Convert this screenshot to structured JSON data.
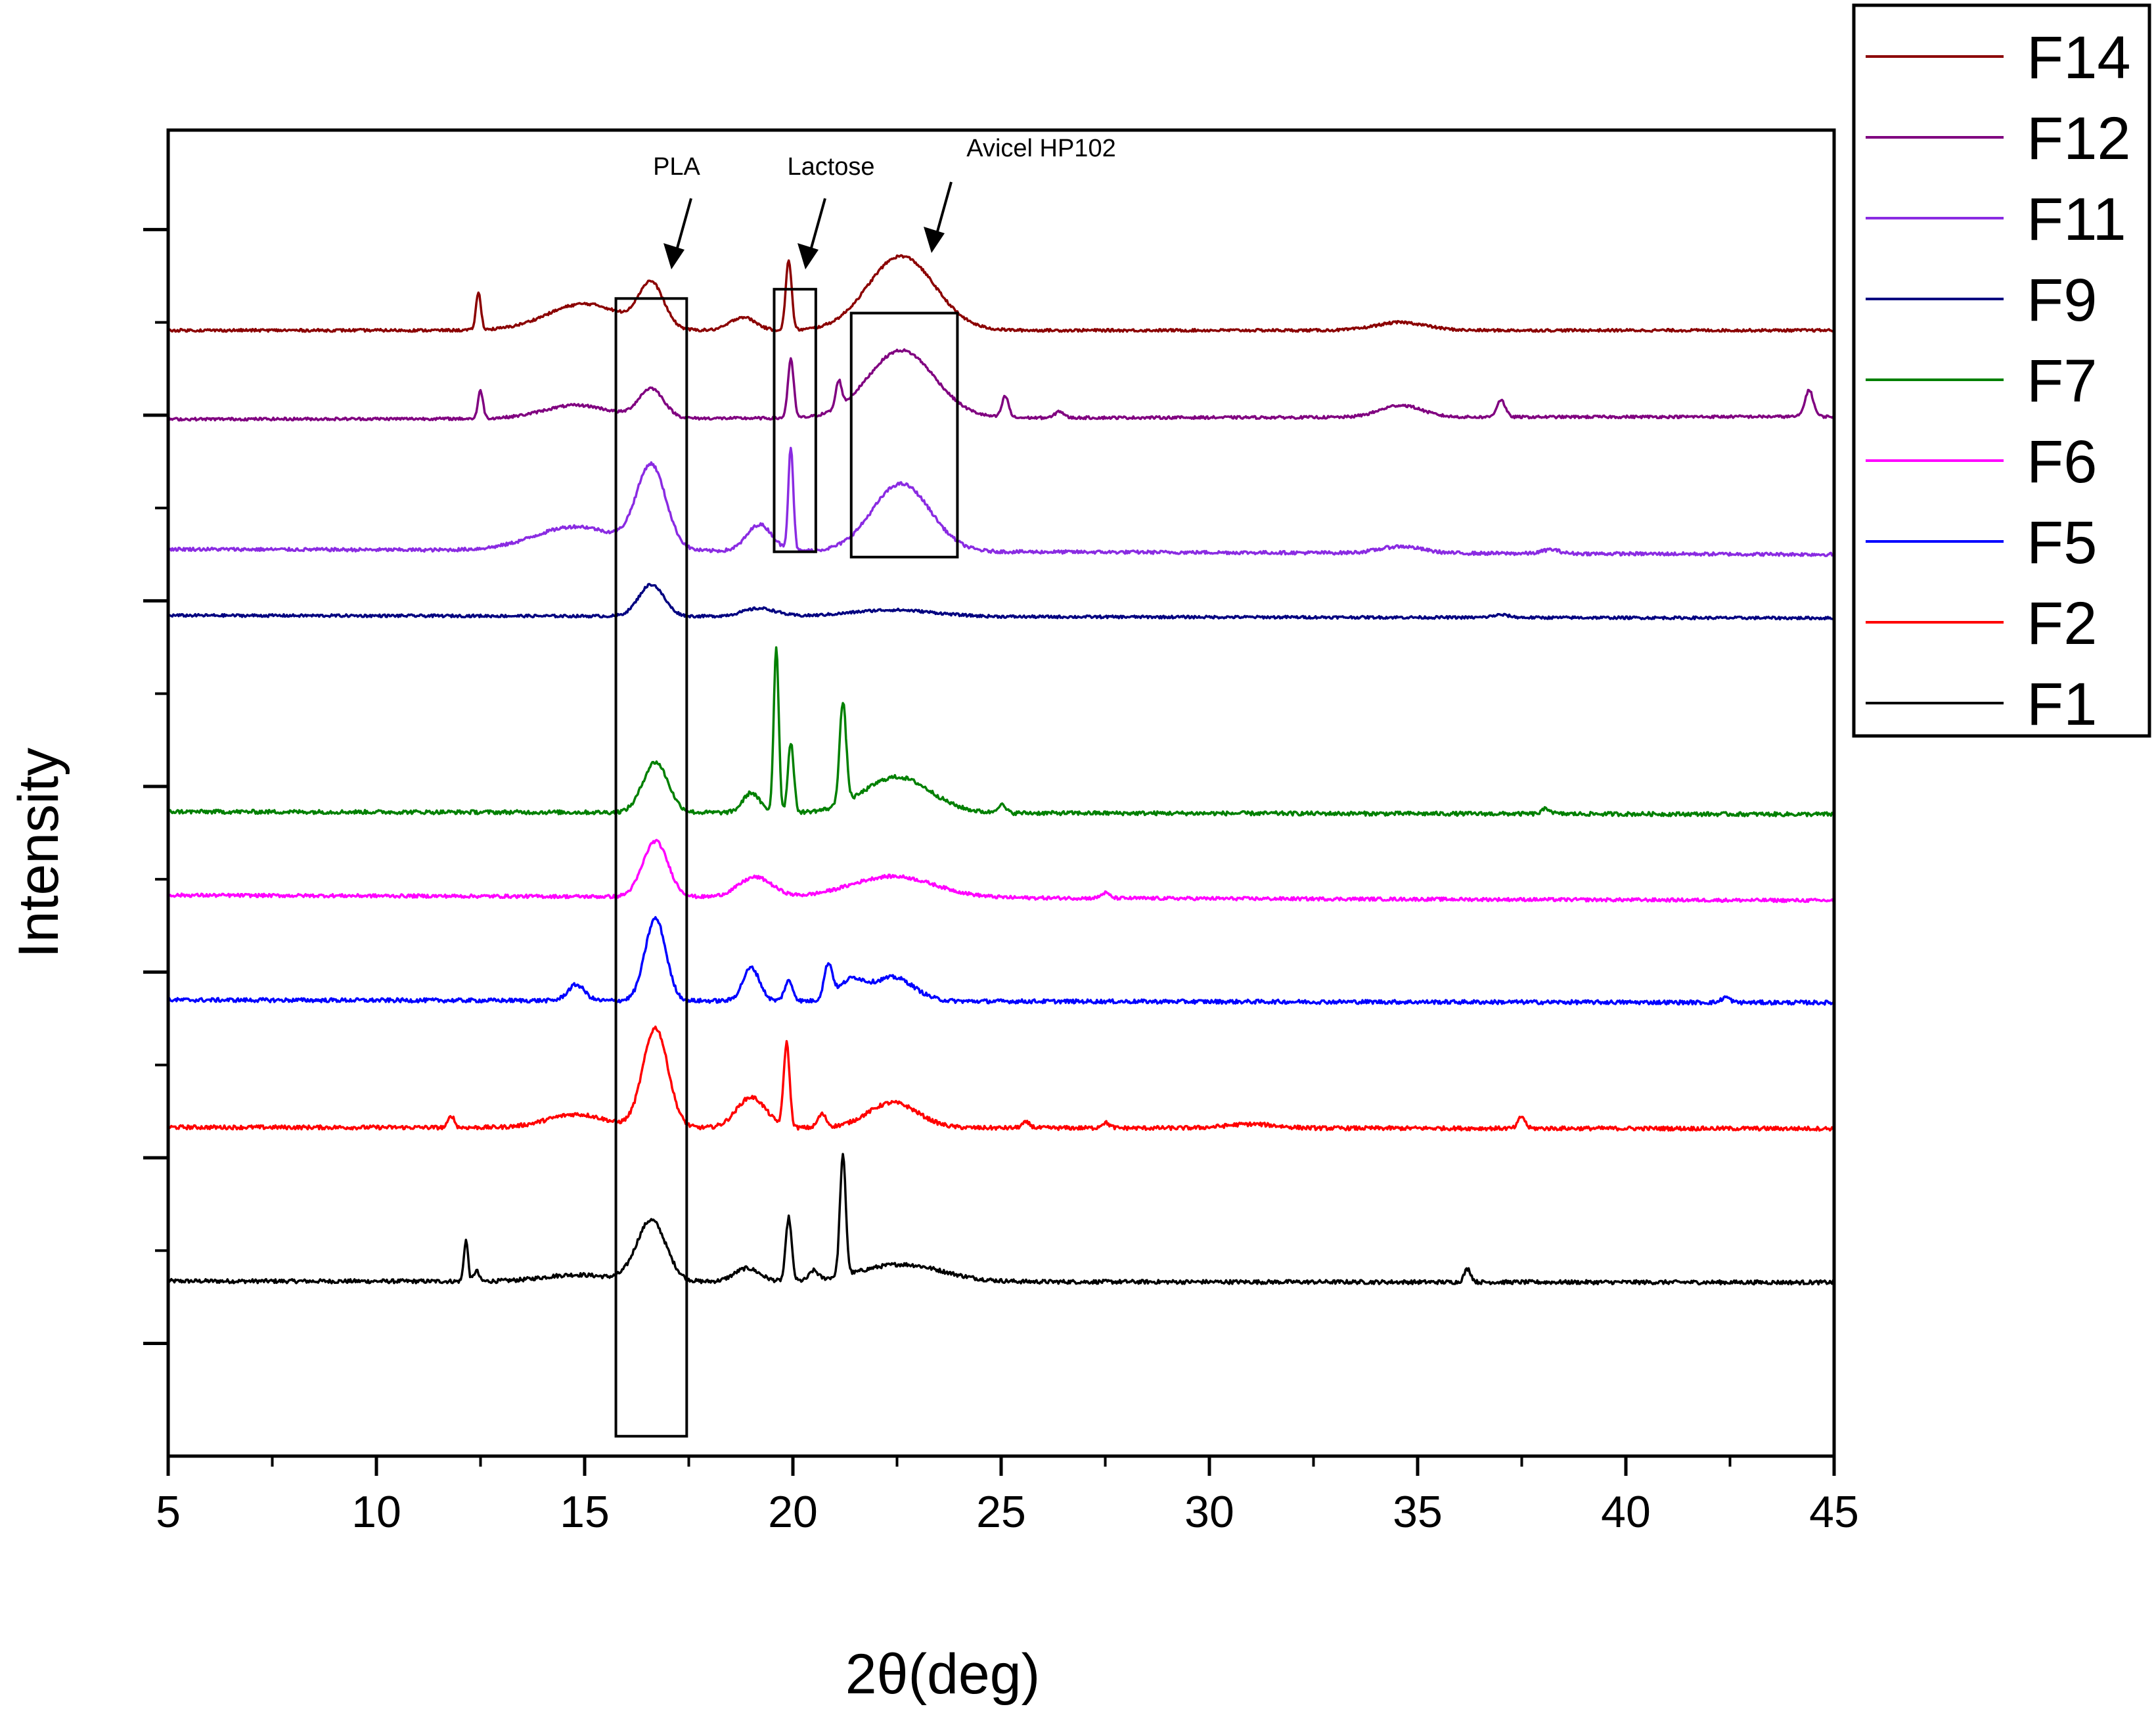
{
  "chart_data": {
    "type": "line",
    "title": "",
    "xlabel": "2θ(deg)",
    "ylabel": "Intensity",
    "xlim": [
      5,
      45
    ],
    "ylim": [
      0,
      100
    ],
    "x_ticks": [
      5,
      10,
      15,
      20,
      25,
      30,
      35,
      40,
      45
    ],
    "x_tick_labels": [
      "5",
      "10",
      "15",
      "20",
      "25",
      "30",
      "35",
      "40",
      "45"
    ],
    "y_tick_labels_shown": false,
    "legend": {
      "position": "outside-top-right",
      "entries": [
        "F14",
        "F12",
        "F11",
        "F9",
        "F7",
        "F6",
        "F5",
        "F2",
        "F1"
      ]
    },
    "annotations": [
      {
        "label": "PLA",
        "x_range": [
          15.75,
          17.45
        ]
      },
      {
        "label": "Lactose",
        "x_range": [
          19.55,
          20.55
        ]
      },
      {
        "label": "Avicel HP102",
        "x_range": [
          21.4,
          23.95
        ]
      }
    ],
    "series": [
      {
        "name": "F1",
        "color": "#000000",
        "baseline": 13.2,
        "end": 13.1,
        "noise": 0.3,
        "peaks": [
          [
            12.15,
            3.1,
            0.05
          ],
          [
            12.4,
            0.8,
            0.06
          ],
          [
            14.8,
            0.5,
            0.8
          ],
          [
            16.6,
            4.6,
            0.35
          ],
          [
            18.9,
            1.0,
            0.3
          ],
          [
            19.9,
            4.8,
            0.07
          ],
          [
            20.5,
            0.7,
            0.1
          ],
          [
            21.2,
            9.0,
            0.07
          ],
          [
            22.6,
            1.3,
            1.0
          ],
          [
            36.2,
            1.0,
            0.08
          ]
        ]
      },
      {
        "name": "F2",
        "color": "#ff0000",
        "baseline": 24.8,
        "end": 24.7,
        "noise": 0.3,
        "peaks": [
          [
            11.8,
            0.9,
            0.07
          ],
          [
            14.8,
            1.0,
            0.7
          ],
          [
            16.7,
            7.5,
            0.3
          ],
          [
            19.0,
            2.3,
            0.35
          ],
          [
            19.85,
            6.3,
            0.07
          ],
          [
            20.7,
            1.0,
            0.1
          ],
          [
            22.4,
            1.9,
            0.6
          ],
          [
            25.6,
            0.4,
            0.1
          ],
          [
            27.5,
            0.4,
            0.1
          ],
          [
            31.0,
            0.3,
            0.6
          ],
          [
            37.5,
            0.9,
            0.08
          ]
        ]
      },
      {
        "name": "F5",
        "color": "#0000ff",
        "baseline": 34.4,
        "end": 34.2,
        "noise": 0.3,
        "peaks": [
          [
            14.8,
            1.2,
            0.2
          ],
          [
            16.7,
            6.2,
            0.25
          ],
          [
            19.0,
            2.5,
            0.2
          ],
          [
            19.9,
            1.5,
            0.1
          ],
          [
            20.85,
            2.6,
            0.1
          ],
          [
            21.4,
            1.5,
            0.3
          ],
          [
            22.4,
            1.8,
            0.5
          ],
          [
            42.4,
            0.4,
            0.1
          ]
        ]
      },
      {
        "name": "F6",
        "color": "#ff00ff",
        "baseline": 42.3,
        "end": 41.9,
        "noise": 0.25,
        "peaks": [
          [
            16.7,
            4.2,
            0.3
          ],
          [
            19.1,
            1.5,
            0.4
          ],
          [
            22.4,
            1.6,
            1.0
          ],
          [
            27.5,
            0.4,
            0.1
          ]
        ]
      },
      {
        "name": "F7",
        "color": "#008000",
        "baseline": 48.6,
        "end": 48.4,
        "noise": 0.3,
        "peaks": [
          [
            16.7,
            3.8,
            0.3
          ],
          [
            19.0,
            1.5,
            0.2
          ],
          [
            19.6,
            12.5,
            0.06
          ],
          [
            19.95,
            5.3,
            0.07
          ],
          [
            21.2,
            7.6,
            0.08
          ],
          [
            22.5,
            2.7,
            0.8
          ],
          [
            25.0,
            0.6,
            0.1
          ],
          [
            38.1,
            0.4,
            0.1
          ]
        ]
      },
      {
        "name": "F9",
        "color": "#000080",
        "baseline": 63.4,
        "end": 63.2,
        "noise": 0.2,
        "peaks": [
          [
            16.6,
            2.4,
            0.3
          ],
          [
            19.2,
            0.6,
            0.4
          ],
          [
            22.4,
            0.5,
            1.0
          ],
          [
            37.0,
            0.2,
            0.2
          ]
        ]
      },
      {
        "name": "F11",
        "color": "#8a2be2",
        "baseline": 68.4,
        "end": 68.0,
        "noise": 0.25,
        "peaks": [
          [
            14.8,
            1.8,
            1.0
          ],
          [
            16.6,
            6.2,
            0.35
          ],
          [
            19.2,
            2.0,
            0.3
          ],
          [
            19.95,
            7.8,
            0.06
          ],
          [
            22.6,
            5.1,
            0.7
          ],
          [
            34.6,
            0.5,
            0.5
          ],
          [
            38.2,
            0.3,
            0.2
          ]
        ]
      },
      {
        "name": "F12",
        "color": "#800080",
        "baseline": 78.2,
        "end": 78.4,
        "noise": 0.2,
        "peaks": [
          [
            12.5,
            2.1,
            0.06
          ],
          [
            14.8,
            1.0,
            0.8
          ],
          [
            16.6,
            2.2,
            0.3
          ],
          [
            19.95,
            4.4,
            0.07
          ],
          [
            21.1,
            2.0,
            0.07
          ],
          [
            22.6,
            5.1,
            0.8
          ],
          [
            25.1,
            1.6,
            0.08
          ],
          [
            26.4,
            0.5,
            0.1
          ],
          [
            34.6,
            0.9,
            0.5
          ],
          [
            37.0,
            1.3,
            0.1
          ],
          [
            44.4,
            2.0,
            0.1
          ]
        ]
      },
      {
        "name": "F14",
        "color": "#8b0000",
        "baseline": 84.9,
        "end": 84.9,
        "noise": 0.2,
        "peaks": [
          [
            12.45,
            2.8,
            0.06
          ],
          [
            15.0,
            2.0,
            0.9
          ],
          [
            16.6,
            3.3,
            0.3
          ],
          [
            18.8,
            1.0,
            0.3
          ],
          [
            19.9,
            5.3,
            0.07
          ],
          [
            22.6,
            5.6,
            0.8
          ],
          [
            34.6,
            0.6,
            0.6
          ]
        ]
      }
    ]
  }
}
